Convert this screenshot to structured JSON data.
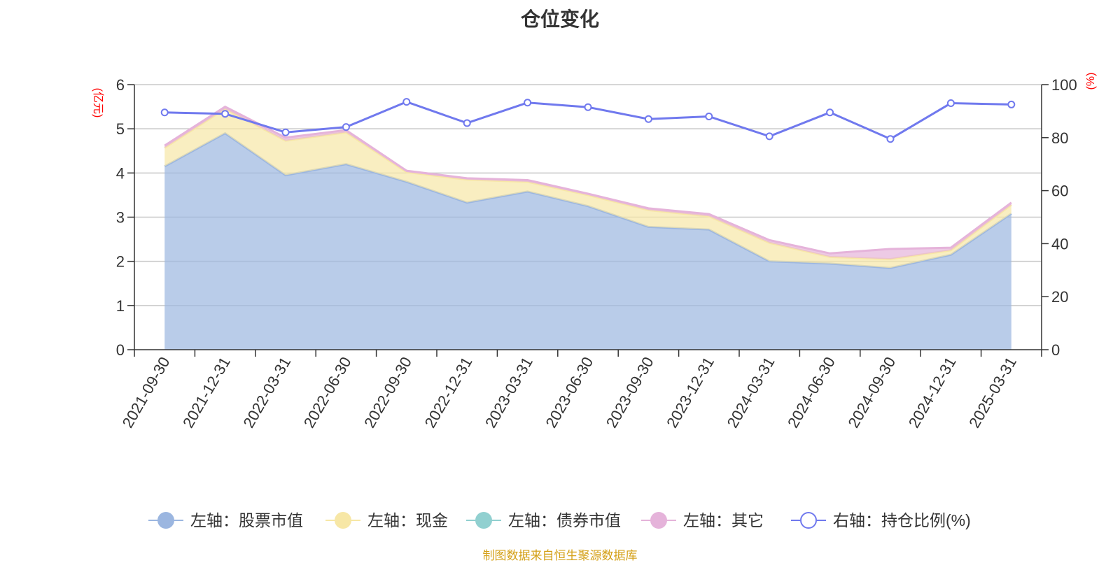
{
  "title": "仓位变化",
  "source_note": "制图数据来自恒生聚源数据库",
  "chart_data": {
    "type": "area",
    "x": [
      "2021-09-30",
      "2021-12-31",
      "2022-03-31",
      "2022-06-30",
      "2022-09-30",
      "2022-12-31",
      "2023-03-31",
      "2023-06-30",
      "2023-09-30",
      "2023-12-31",
      "2024-03-31",
      "2024-06-30",
      "2024-09-30",
      "2024-12-31",
      "2025-03-31"
    ],
    "left_axis": {
      "unit_label": "(亿元)",
      "ylim": [
        0,
        6
      ],
      "ticks": [
        "0",
        "1",
        "2",
        "3",
        "4",
        "5",
        "6"
      ]
    },
    "right_axis": {
      "unit_label": "(%)",
      "ylim": [
        0,
        100
      ],
      "ticks": [
        "0",
        "20",
        "40",
        "60",
        "80",
        "100"
      ]
    },
    "stacked": true,
    "grid": true,
    "legend_position": "bottom",
    "series": [
      {
        "name": "左轴：股票市值",
        "axis": "left",
        "type": "area",
        "color": "#9bb6e0",
        "values": [
          4.15,
          4.9,
          3.95,
          4.2,
          3.8,
          3.33,
          3.58,
          3.25,
          2.78,
          2.72,
          2.0,
          1.95,
          1.85,
          2.15,
          3.08
        ]
      },
      {
        "name": "左轴：现金",
        "axis": "left",
        "type": "area",
        "color": "#f7e7a6",
        "values": [
          0.42,
          0.55,
          0.78,
          0.72,
          0.22,
          0.52,
          0.22,
          0.25,
          0.38,
          0.3,
          0.42,
          0.15,
          0.2,
          0.1,
          0.2
        ]
      },
      {
        "name": "左轴：债券市值",
        "axis": "left",
        "type": "area",
        "color": "#91d0d0",
        "values": [
          0,
          0,
          0,
          0,
          0,
          0,
          0,
          0,
          0,
          0,
          0,
          0,
          0,
          0,
          0
        ]
      },
      {
        "name": "左轴：其它",
        "axis": "left",
        "type": "area",
        "color": "#e5b3da",
        "values": [
          0.05,
          0.05,
          0.07,
          0.05,
          0.03,
          0.03,
          0.04,
          0.03,
          0.04,
          0.05,
          0.06,
          0.08,
          0.23,
          0.06,
          0.05
        ]
      },
      {
        "name": "右轴：持仓比例(%)",
        "axis": "right",
        "type": "line",
        "color": "#7079ee",
        "values": [
          89.5,
          89,
          82,
          84,
          93.5,
          85.5,
          93.2,
          91.5,
          87,
          88,
          80.5,
          89.5,
          79.5,
          93,
          92.5
        ]
      }
    ]
  }
}
